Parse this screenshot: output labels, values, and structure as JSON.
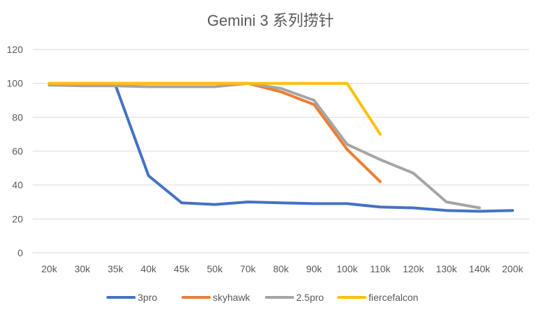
{
  "chart_data": {
    "type": "line",
    "title": "Gemini 3 系列捞针",
    "xlabel": "",
    "ylabel": "",
    "categories": [
      "20k",
      "30k",
      "35k",
      "40k",
      "45k",
      "50k",
      "70k",
      "80k",
      "90k",
      "100k",
      "110k",
      "120k",
      "130k",
      "140k",
      "200k"
    ],
    "ylim": [
      0,
      120
    ],
    "yticks": [
      0,
      20,
      40,
      60,
      80,
      100,
      120
    ],
    "grid": true,
    "legend": "bottom",
    "series": [
      {
        "name": "3pro",
        "color": "#4472C4",
        "values": [
          99,
          99,
          99,
          45.5,
          29.5,
          28.5,
          30,
          29.5,
          29,
          29,
          27,
          26.5,
          25,
          24.5,
          25
        ]
      },
      {
        "name": "skyhawk",
        "color": "#ED7D31",
        "values": [
          100,
          100,
          100,
          100,
          100,
          100,
          100,
          95,
          87.5,
          61,
          42,
          null,
          null,
          null,
          null
        ]
      },
      {
        "name": "2.5pro",
        "color": "#A5A5A5",
        "values": [
          99,
          98.5,
          98.5,
          98,
          98,
          98,
          100,
          97,
          90,
          64,
          55,
          47,
          30,
          26.5,
          null
        ]
      },
      {
        "name": "fiercefalcon",
        "color": "#FFC000",
        "values": [
          100,
          100,
          100,
          100,
          100,
          100,
          100,
          100,
          100,
          100,
          70,
          null,
          null,
          null,
          null
        ]
      }
    ]
  }
}
